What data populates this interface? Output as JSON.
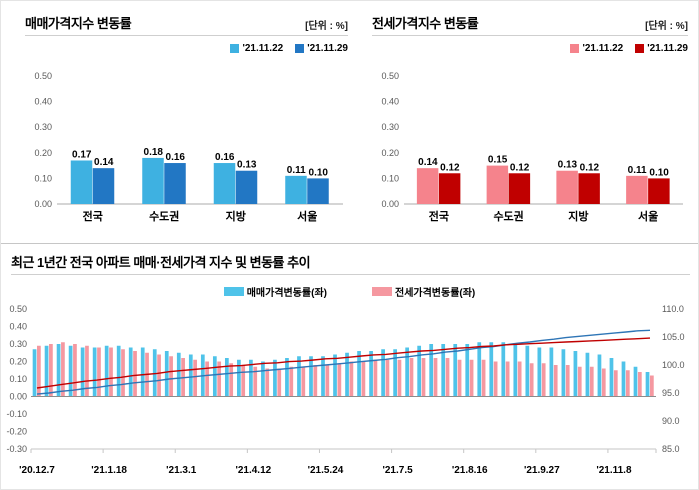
{
  "sales_panel": {
    "title": "매매가격지수 변동률",
    "unit": "[단위 : %]"
  },
  "jeonse_panel": {
    "title": "전세가격지수 변동률",
    "unit": "[단위 : %]"
  },
  "trend_panel": {
    "title": "최근 1년간 전국 아파트 매매·전세가격 지수 및 변동률 추이"
  },
  "chart_data": [
    {
      "id": "sales",
      "type": "bar",
      "title": "매매가격지수 변동률",
      "unit": "%",
      "categories": [
        "전국",
        "수도권",
        "지방",
        "서울"
      ],
      "series": [
        {
          "name": "'21.11.22",
          "color": "#3EB1E1",
          "values": [
            0.17,
            0.18,
            0.16,
            0.11
          ]
        },
        {
          "name": "'21.11.29",
          "color": "#2277C4",
          "values": [
            0.14,
            0.16,
            0.13,
            0.1
          ]
        }
      ],
      "ylim": [
        0,
        0.5
      ],
      "yticks": [
        0.5,
        0.4,
        0.3,
        0.2,
        0.1,
        0
      ],
      "grid": false,
      "legend_position": "top-right",
      "value_labels": true
    },
    {
      "id": "jeonse",
      "type": "bar",
      "title": "전세가격지수 변동률",
      "unit": "%",
      "categories": [
        "전국",
        "수도권",
        "지방",
        "서울"
      ],
      "series": [
        {
          "name": "'21.11.22",
          "color": "#F5838C",
          "values": [
            0.14,
            0.15,
            0.13,
            0.11
          ]
        },
        {
          "name": "'21.11.29",
          "color": "#C00000",
          "values": [
            0.12,
            0.12,
            0.12,
            0.1
          ]
        }
      ],
      "ylim": [
        0,
        0.5
      ],
      "yticks": [
        0.5,
        0.4,
        0.3,
        0.2,
        0.1,
        0
      ],
      "grid": false,
      "legend_position": "top-right",
      "value_labels": true
    },
    {
      "id": "trend",
      "type": "bar+line",
      "title": "최근 1년간 전국 아파트 매매·전세가격 지수 및 변동률 추이",
      "n_points": 52,
      "x_label_indices": [
        0,
        6,
        12,
        18,
        24,
        30,
        36,
        42,
        48
      ],
      "x_labels": [
        "'20.12.7",
        "'21.1.18",
        "'21.3.1",
        "'21.4.12",
        "'21.5.24",
        "'21.7.5",
        "'21.8.16",
        "'21.9.27",
        "'21.11.8"
      ],
      "ylim_left": [
        -0.3,
        0.5
      ],
      "yticks_left": [
        0.5,
        0.4,
        0.3,
        0.2,
        0.1,
        0,
        -0.1,
        -0.2,
        -0.3
      ],
      "ylim_right": [
        85,
        110
      ],
      "yticks_right": [
        110,
        105,
        100,
        95,
        90,
        85
      ],
      "grid": false,
      "legend_position": "top-center",
      "bar_series": [
        {
          "name": "매매가격변동률(좌)",
          "axis": "left",
          "color": "#4FC3E9",
          "values": [
            0.27,
            0.29,
            0.3,
            0.29,
            0.28,
            0.28,
            0.29,
            0.29,
            0.28,
            0.28,
            0.27,
            0.26,
            0.25,
            0.24,
            0.24,
            0.23,
            0.22,
            0.21,
            0.21,
            0.2,
            0.21,
            0.22,
            0.23,
            0.23,
            0.23,
            0.24,
            0.25,
            0.26,
            0.26,
            0.27,
            0.27,
            0.28,
            0.29,
            0.3,
            0.3,
            0.3,
            0.3,
            0.31,
            0.31,
            0.31,
            0.3,
            0.29,
            0.28,
            0.28,
            0.27,
            0.26,
            0.25,
            0.24,
            0.22,
            0.2,
            0.17,
            0.14
          ]
        },
        {
          "name": "전세가격변동률(좌)",
          "axis": "left",
          "color": "#F598A0",
          "values": [
            0.29,
            0.3,
            0.31,
            0.3,
            0.29,
            0.28,
            0.28,
            0.27,
            0.26,
            0.25,
            0.24,
            0.23,
            0.22,
            0.21,
            0.2,
            0.2,
            0.19,
            0.18,
            0.17,
            0.16,
            0.16,
            0.17,
            0.17,
            0.18,
            0.18,
            0.19,
            0.2,
            0.2,
            0.21,
            0.21,
            0.21,
            0.22,
            0.22,
            0.22,
            0.22,
            0.21,
            0.21,
            0.21,
            0.2,
            0.2,
            0.2,
            0.19,
            0.19,
            0.18,
            0.18,
            0.17,
            0.17,
            0.16,
            0.15,
            0.15,
            0.14,
            0.12
          ]
        }
      ],
      "line_series": [
        {
          "name": "sales-index-line",
          "axis": "right",
          "color": "#2E75B6",
          "values": [
            94.8,
            95.0,
            95.3,
            95.5,
            95.8,
            96.0,
            96.3,
            96.5,
            96.8,
            97.0,
            97.2,
            97.5,
            97.7,
            97.9,
            98.1,
            98.3,
            98.5,
            98.7,
            98.8,
            99.0,
            99.2,
            99.4,
            99.6,
            99.8,
            100.0,
            100.2,
            100.4,
            100.6,
            100.8,
            101.0,
            101.3,
            101.5,
            101.8,
            102.0,
            102.3,
            102.5,
            102.8,
            103.1,
            103.3,
            103.6,
            103.9,
            104.1,
            104.4,
            104.6,
            104.9,
            105.1,
            105.3,
            105.5,
            105.7,
            105.9,
            106.1,
            106.2
          ]
        },
        {
          "name": "jeonse-index-line",
          "axis": "right",
          "color": "#C00000",
          "values": [
            95.9,
            96.2,
            96.5,
            96.8,
            97.1,
            97.3,
            97.6,
            97.8,
            98.1,
            98.3,
            98.5,
            98.8,
            99.0,
            99.2,
            99.4,
            99.6,
            99.8,
            99.9,
            100.1,
            100.3,
            100.4,
            100.6,
            100.7,
            100.9,
            101.1,
            101.2,
            101.4,
            101.6,
            101.8,
            101.9,
            102.1,
            102.3,
            102.5,
            102.6,
            102.8,
            103.0,
            103.1,
            103.3,
            103.4,
            103.6,
            103.7,
            103.8,
            103.9,
            104.0,
            104.1,
            104.2,
            104.3,
            104.4,
            104.5,
            104.6,
            104.7,
            104.8
          ]
        }
      ]
    }
  ]
}
